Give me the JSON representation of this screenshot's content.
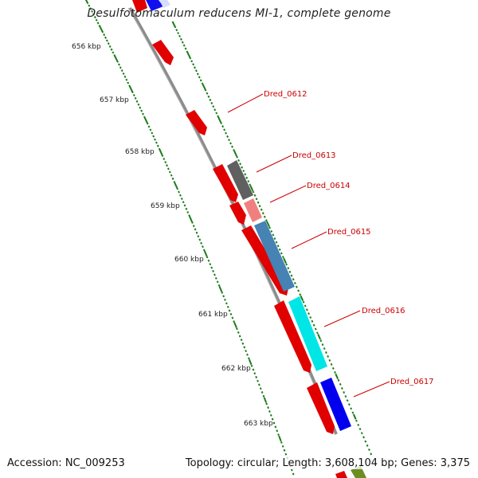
{
  "title": "Desulfotomaculum reducens MI-1, complete genome",
  "footer": {
    "accession": "Accession: NC_009253",
    "summary": "Topology: circular; Length: 3,608,104 bp; Genes: 3,375"
  },
  "scale_ticks": [
    "656 kbp",
    "657 kbp",
    "658 kbp",
    "659 kbp",
    "660 kbp",
    "661 kbp",
    "662 kbp",
    "663 kbp"
  ],
  "gene_labels": [
    "Dred_0612",
    "Dred_0613",
    "Dred_0614",
    "Dred_0615",
    "Dred_0616",
    "Dred_0617"
  ],
  "colors": {
    "backbone": "#8c8c8c",
    "forward_feature": "#ff0000",
    "tick_green": "#1a7a1a",
    "label_red": "#cc0000",
    "leader": "#cc0000",
    "gene_0613": "#606060",
    "gene_0614": "#f08080",
    "gene_0615": "#4682b4",
    "gene_0616": "#00e5e5",
    "gene_0617": "#0000ee",
    "gene_next": "#6b8e23"
  }
}
